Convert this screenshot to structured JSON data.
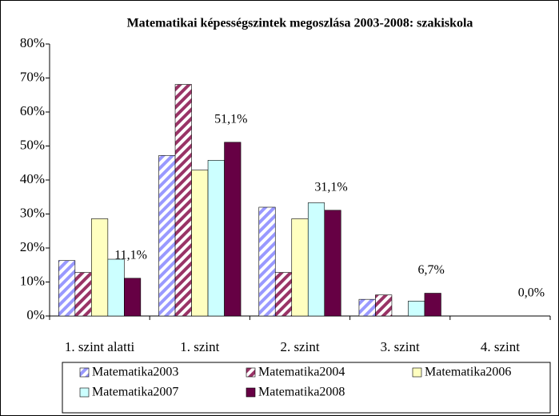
{
  "chart_data": {
    "type": "bar",
    "title": "Matematikai képességszintek megoszlása 2003-2008: szakiskola",
    "categories": [
      "1. szint alatti",
      "1. szint",
      "2. szint",
      "3. szint",
      "4. szint"
    ],
    "series": [
      {
        "name": "Matematika2003",
        "color": "#9999ff",
        "pattern": "stripes",
        "values": [
          16.3,
          47.2,
          32.0,
          4.9,
          0
        ]
      },
      {
        "name": "Matematika2004",
        "color": "#993366",
        "pattern": "stripes",
        "values": [
          12.8,
          68.1,
          12.8,
          6.2,
          0
        ]
      },
      {
        "name": "Matematika2006",
        "color": "#ffffc0",
        "values": [
          28.6,
          42.9,
          28.6,
          0,
          0
        ]
      },
      {
        "name": "Matematika2007",
        "color": "#ccffff",
        "values": [
          16.7,
          45.8,
          33.3,
          4.4,
          0
        ]
      },
      {
        "name": "Matematika2008",
        "color": "#660044",
        "values": [
          11.1,
          51.1,
          31.1,
          6.7,
          0.0
        ],
        "value_labels": [
          "11,1%",
          "51,1%",
          "31,1%",
          "6,7%",
          "0,0%"
        ]
      }
    ],
    "ylim": [
      0,
      80
    ],
    "yticks": [
      {
        "value": 0,
        "label": "0%"
      },
      {
        "value": 10,
        "label": "10%"
      },
      {
        "value": 20,
        "label": "20%"
      },
      {
        "value": 30,
        "label": "30%"
      },
      {
        "value": 40,
        "label": "40%"
      },
      {
        "value": 50,
        "label": "50%"
      },
      {
        "value": 60,
        "label": "60%"
      },
      {
        "value": 70,
        "label": "70%"
      },
      {
        "value": 80,
        "label": "80%"
      }
    ],
    "grid": false,
    "legend": "bottom"
  }
}
